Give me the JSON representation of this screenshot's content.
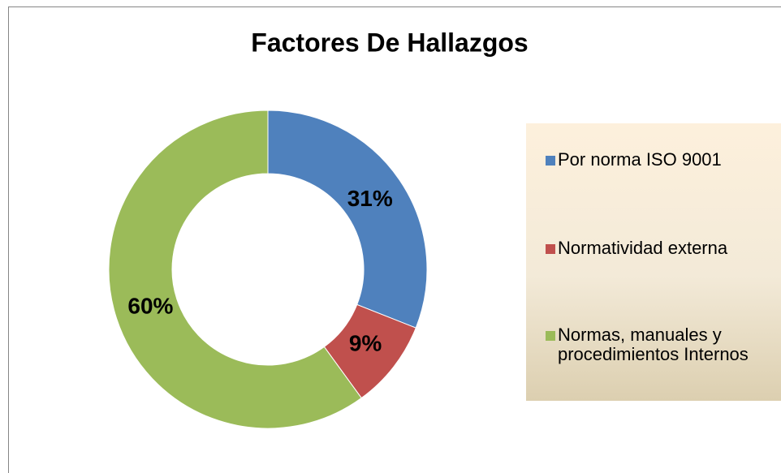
{
  "chart_data": {
    "type": "pie",
    "donut": true,
    "title": "Factores De Hallazgos",
    "categories": [
      "Por norma ISO 9001",
      "Normatividad externa",
      "Normas, manuales y procedimientos Internos"
    ],
    "values": [
      31,
      9,
      60
    ],
    "value_labels": [
      "31%",
      "9%",
      "60%"
    ],
    "colors": [
      "#4f81bd",
      "#c0504d",
      "#9bbb59"
    ],
    "legend": "right"
  }
}
